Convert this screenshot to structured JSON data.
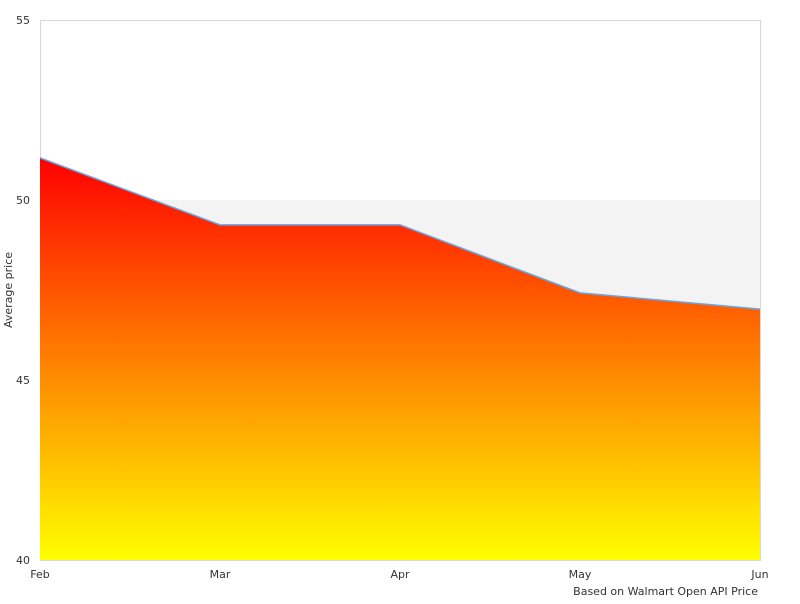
{
  "chart_data": {
    "type": "area",
    "title": "",
    "xlabel": "",
    "ylabel": "Average price",
    "credit": "Based on Walmart Open API Price",
    "categories": [
      "Feb",
      "Mar",
      "Apr",
      "May",
      "Jun"
    ],
    "series": [
      {
        "values": [
          51.17,
          49.31,
          49.31,
          47.42,
          46.97
        ]
      }
    ],
    "ylim": [
      40,
      55
    ],
    "yticks": [
      40,
      45,
      50,
      55
    ],
    "plot_bands": [
      {
        "from": 45,
        "to": 50,
        "color": "#f3f3f3"
      }
    ],
    "colors": {
      "line": "#6aa5e7",
      "fill_top": "#ff0000",
      "fill_bottom": "#ffff00",
      "axis": "#d8d8d8"
    },
    "grid": false,
    "legend": "none"
  }
}
